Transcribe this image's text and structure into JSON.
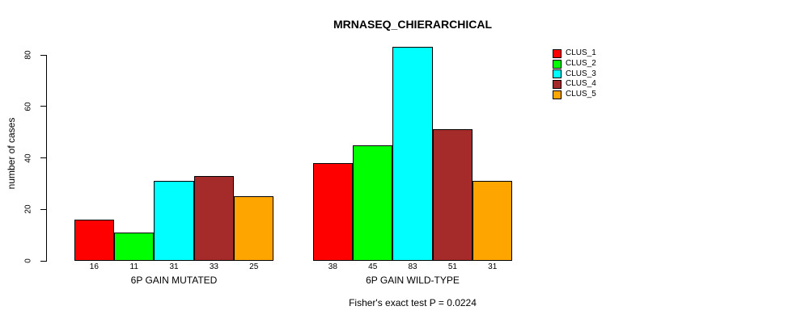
{
  "title": "MRNASEQ_CHIERARCHICAL",
  "chart_data": {
    "type": "bar",
    "title": "MRNASEQ_CHIERARCHICAL",
    "xlabel": "",
    "ylabel": "number of cases",
    "ylim": [
      0,
      80
    ],
    "yticks": [
      0,
      20,
      40,
      60,
      80
    ],
    "grid": false,
    "legend_position": "right-outside",
    "bar_value_labels": true,
    "categories": [
      "6P GAIN MUTATED",
      "6P GAIN WILD-TYPE"
    ],
    "series": [
      {
        "name": "CLUS_1",
        "color": "#ff0000",
        "values": [
          16,
          38
        ]
      },
      {
        "name": "CLUS_2",
        "color": "#00ff00",
        "values": [
          11,
          45
        ]
      },
      {
        "name": "CLUS_3",
        "color": "#00ffff",
        "values": [
          31,
          83
        ]
      },
      {
        "name": "CLUS_4",
        "color": "#a52a2a",
        "values": [
          33,
          51
        ]
      },
      {
        "name": "CLUS_5",
        "color": "#ffa500",
        "values": [
          25,
          31
        ]
      }
    ],
    "annotations": [
      "Fisher's exact test P = 0.0224"
    ]
  },
  "colors": {
    "background": "#ffffff",
    "axis": "#000000",
    "text": "#000000"
  }
}
